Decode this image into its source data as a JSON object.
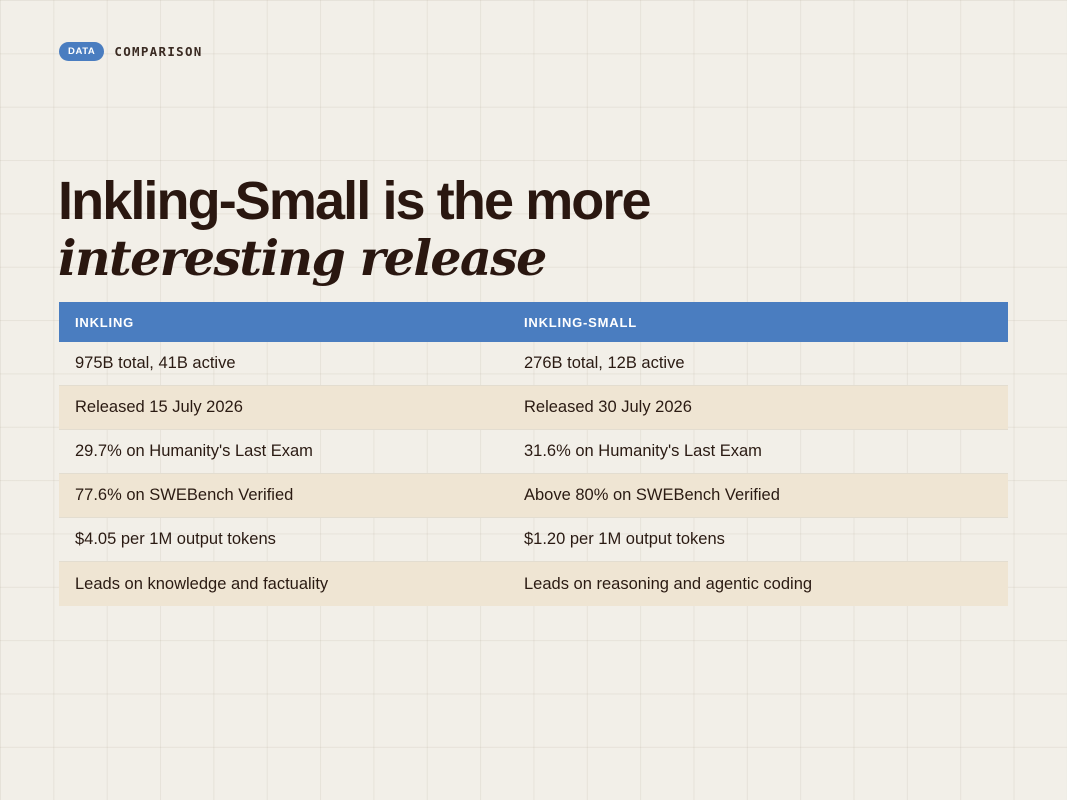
{
  "header": {
    "badge": "DATA",
    "section": "COMPARISON"
  },
  "title": {
    "line1": "Inkling-Small is the more",
    "line2": "interesting release"
  },
  "table": {
    "columns": [
      "INKLING",
      "INKLING-SMALL"
    ],
    "rows": [
      [
        "975B total, 41B active",
        "276B total, 12B active"
      ],
      [
        "Released 15 July 2026",
        "Released 30 July 2026"
      ],
      [
        "29.7% on Humanity's Last Exam",
        "31.6% on Humanity's Last Exam"
      ],
      [
        "77.6% on SWEBench Verified",
        "Above 80% on SWEBench Verified"
      ],
      [
        "$4.05 per 1M output tokens",
        "$1.20 per 1M output tokens"
      ],
      [
        "Leads on knowledge and factuality",
        "Leads on reasoning and agentic coding"
      ]
    ]
  },
  "colors": {
    "accent": "#4a7dc0",
    "background": "#f2efe8",
    "row_alt": "#efe5d3",
    "text": "#2a1a12"
  }
}
